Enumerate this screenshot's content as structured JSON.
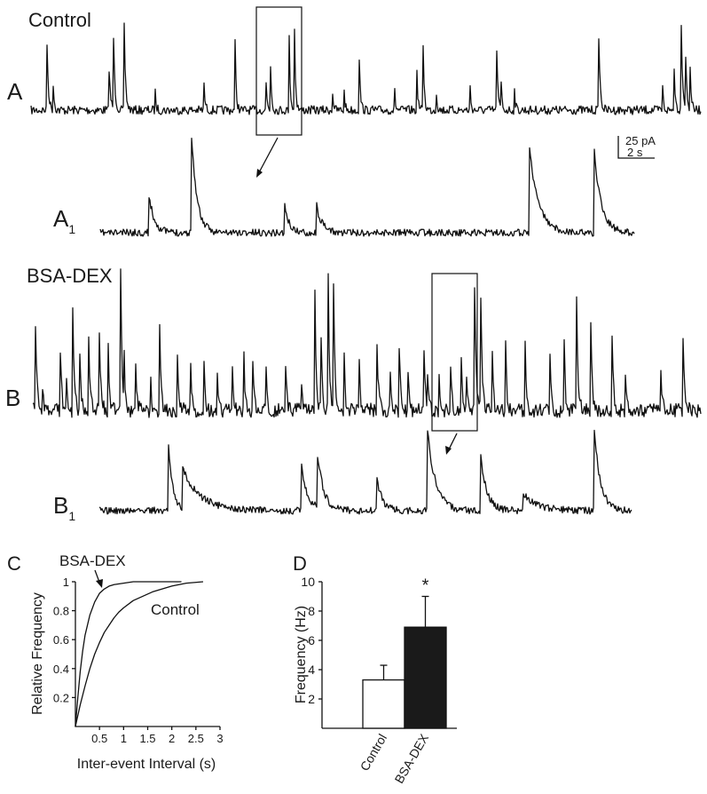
{
  "panels": {
    "A": {
      "letter": "A",
      "condition": "Control"
    },
    "A1": {
      "letter": "A",
      "sub": "1"
    },
    "B": {
      "letter": "B",
      "condition": "BSA-DEX"
    },
    "B1": {
      "letter": "B",
      "sub": "1"
    },
    "C": {
      "letter": "C"
    },
    "D": {
      "letter": "D"
    }
  },
  "scale_bar": {
    "current": "25 pA",
    "time": "2 s"
  },
  "chart_data": [
    {
      "panel": "C",
      "type": "line",
      "xlabel": "Inter-event Interval (s)",
      "ylabel": "Relative Frequency",
      "xlim": [
        0,
        3
      ],
      "ylim": [
        0,
        1
      ],
      "xticks": [
        "0.5",
        "1",
        "1.5",
        "2",
        "2.5",
        "3"
      ],
      "yticks": [
        "0.2",
        "0.4",
        "0.6",
        "0.8",
        "1"
      ],
      "grid": false,
      "series": [
        {
          "name": "BSA-DEX",
          "x": [
            0,
            0.05,
            0.1,
            0.15,
            0.2,
            0.3,
            0.4,
            0.5,
            0.6,
            0.7,
            0.8,
            1.0,
            1.2,
            1.5,
            1.8,
            2.2
          ],
          "y": [
            0,
            0.2,
            0.38,
            0.52,
            0.63,
            0.77,
            0.86,
            0.92,
            0.95,
            0.97,
            0.98,
            0.99,
            1.0,
            1.0,
            1.0,
            1.0
          ]
        },
        {
          "name": "Control",
          "x": [
            0,
            0.1,
            0.2,
            0.3,
            0.4,
            0.5,
            0.6,
            0.7,
            0.8,
            0.9,
            1.0,
            1.2,
            1.4,
            1.6,
            1.8,
            2.0,
            2.3,
            2.65
          ],
          "y": [
            0,
            0.15,
            0.28,
            0.4,
            0.5,
            0.58,
            0.65,
            0.7,
            0.75,
            0.79,
            0.82,
            0.87,
            0.9,
            0.93,
            0.95,
            0.97,
            0.99,
            1.0
          ]
        }
      ],
      "annotations": [
        "BSA-DEX",
        "Control"
      ]
    },
    {
      "panel": "D",
      "type": "bar",
      "categories": [
        "Control",
        "BSA-DEX"
      ],
      "values": [
        3.3,
        6.9
      ],
      "errors": [
        1.0,
        2.1
      ],
      "fills": [
        "#ffffff",
        "#1a1a1a"
      ],
      "ylabel": "Frequency (Hz)",
      "ylim": [
        0,
        10
      ],
      "yticks": [
        "2",
        "4",
        "6",
        "8",
        "10"
      ],
      "significance": [
        "",
        "*"
      ]
    }
  ]
}
